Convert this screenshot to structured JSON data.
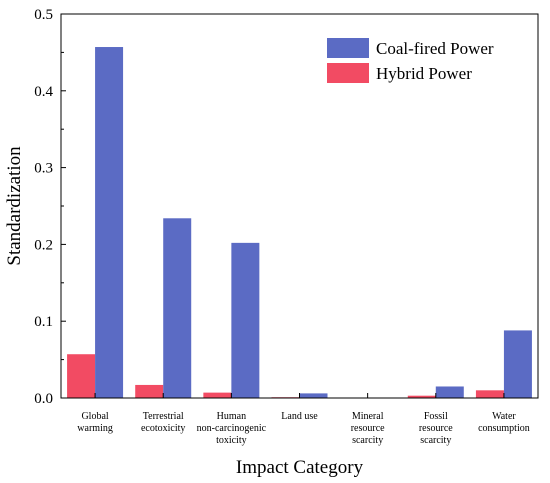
{
  "chart_data": {
    "type": "bar",
    "title": "",
    "xlabel": "Impact Category",
    "ylabel": "Standardization",
    "ylim": [
      0,
      0.5
    ],
    "yticks": [
      "0.0",
      "0.1",
      "0.2",
      "0.3",
      "0.4",
      "0.5"
    ],
    "grid": false,
    "legend_position": "top-right",
    "categories": [
      [
        "Global",
        "warming"
      ],
      [
        "Terrestrial",
        "ecotoxicity"
      ],
      [
        "Human",
        "non-carcinogenic",
        "toxicity"
      ],
      [
        "Land use"
      ],
      [
        "Mineral",
        "resource",
        "scarcity"
      ],
      [
        "Fossil",
        "resource",
        "scarcity"
      ],
      [
        "Water",
        "consumption"
      ]
    ],
    "series": [
      {
        "name": "Hybrid Power",
        "color": "#f24b63",
        "values": [
          0.057,
          0.017,
          0.007,
          0.001,
          0.0003,
          0.003,
          0.01
        ]
      },
      {
        "name": "Coal-fired Power",
        "color": "#5b6bc4",
        "values": [
          0.457,
          0.234,
          0.202,
          0.006,
          0.0003,
          0.015,
          0.088
        ]
      }
    ],
    "legend_order": [
      1,
      0
    ]
  }
}
